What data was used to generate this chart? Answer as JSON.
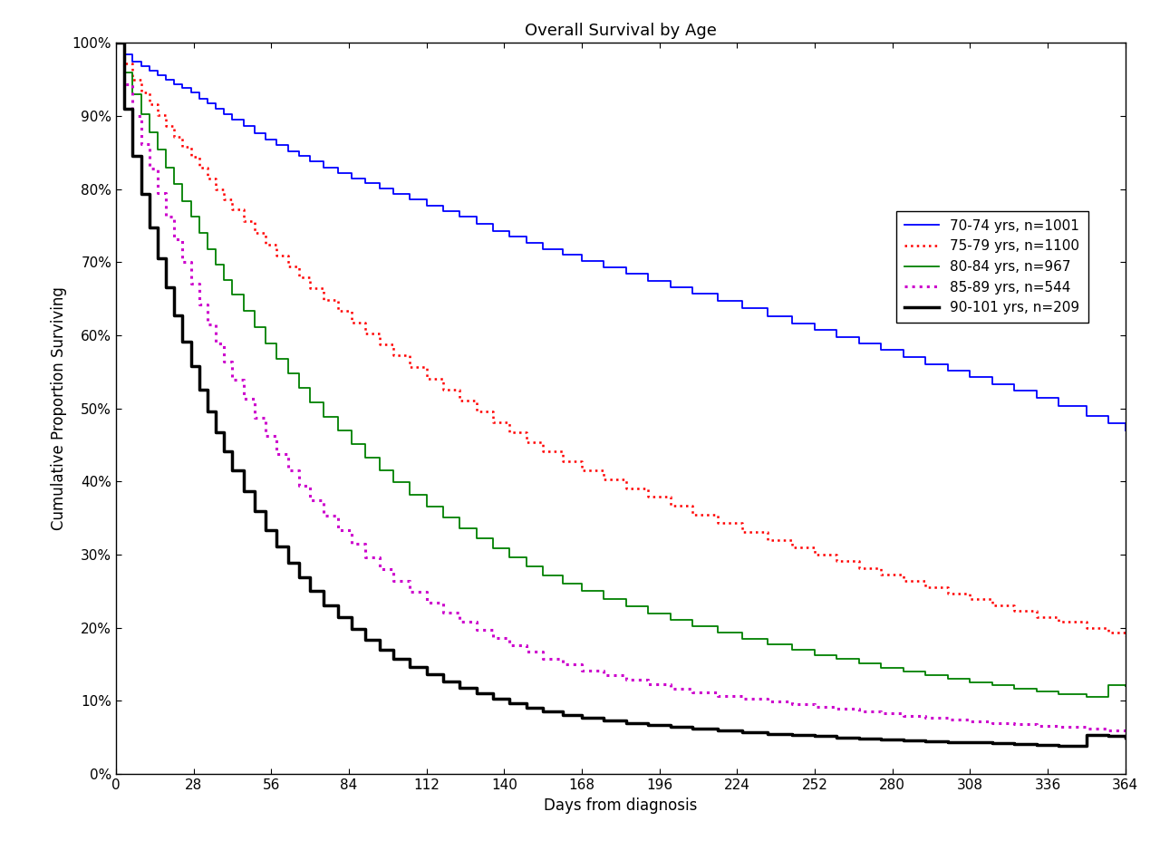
{
  "title": "Overall Survival by Age",
  "xlabel": "Days from diagnosis",
  "ylabel": "Cumulative Proportion Surviving",
  "xlim": [
    0,
    364
  ],
  "ylim": [
    0.0,
    1.0
  ],
  "xticks": [
    0,
    28,
    56,
    84,
    112,
    140,
    168,
    196,
    224,
    252,
    280,
    308,
    336,
    364
  ],
  "yticks": [
    0.0,
    0.1,
    0.2,
    0.3,
    0.4,
    0.5,
    0.6,
    0.7,
    0.8,
    0.9,
    1.0
  ],
  "ytick_labels": [
    "0%",
    "10%",
    "20%",
    "30%",
    "40%",
    "50%",
    "60%",
    "70%",
    "80%",
    "90%",
    "100%"
  ],
  "background_color": "#ffffff",
  "title_fontsize": 13,
  "axis_fontsize": 12,
  "tick_fontsize": 11,
  "legend_fontsize": 11,
  "curves": [
    {
      "label": "70-74 yrs, n=1001",
      "color": "#0000FF",
      "linestyle": "solid",
      "linewidth": 1.3,
      "marker": null,
      "x": [
        0,
        3,
        6,
        9,
        12,
        15,
        18,
        21,
        24,
        27,
        30,
        33,
        36,
        39,
        42,
        46,
        50,
        54,
        58,
        62,
        66,
        70,
        75,
        80,
        85,
        90,
        95,
        100,
        106,
        112,
        118,
        124,
        130,
        136,
        142,
        148,
        154,
        161,
        168,
        176,
        184,
        192,
        200,
        208,
        217,
        226,
        235,
        244,
        252,
        260,
        268,
        276,
        284,
        292,
        300,
        308,
        316,
        324,
        332,
        340,
        350,
        358,
        364
      ],
      "y": [
        1.0,
        0.985,
        0.975,
        0.968,
        0.962,
        0.956,
        0.95,
        0.944,
        0.938,
        0.932,
        0.924,
        0.917,
        0.91,
        0.903,
        0.895,
        0.886,
        0.877,
        0.868,
        0.86,
        0.852,
        0.845,
        0.838,
        0.83,
        0.822,
        0.815,
        0.808,
        0.801,
        0.794,
        0.786,
        0.778,
        0.77,
        0.762,
        0.752,
        0.743,
        0.735,
        0.726,
        0.718,
        0.71,
        0.702,
        0.693,
        0.684,
        0.675,
        0.666,
        0.657,
        0.647,
        0.637,
        0.626,
        0.616,
        0.607,
        0.598,
        0.589,
        0.58,
        0.57,
        0.561,
        0.552,
        0.543,
        0.533,
        0.524,
        0.514,
        0.504,
        0.49,
        0.48,
        0.47
      ]
    },
    {
      "label": "75-79 yrs, n=1100",
      "color": "#FF0000",
      "linestyle": "dotted",
      "linewidth": 1.8,
      "marker": null,
      "x": [
        0,
        3,
        6,
        9,
        12,
        15,
        18,
        21,
        24,
        27,
        30,
        33,
        36,
        39,
        42,
        46,
        50,
        54,
        58,
        62,
        66,
        70,
        75,
        80,
        85,
        90,
        95,
        100,
        106,
        112,
        118,
        124,
        130,
        136,
        142,
        148,
        154,
        161,
        168,
        176,
        184,
        192,
        200,
        208,
        217,
        226,
        235,
        244,
        252,
        260,
        268,
        276,
        284,
        292,
        300,
        308,
        316,
        324,
        332,
        340,
        350,
        358,
        364
      ],
      "y": [
        1.0,
        0.972,
        0.95,
        0.932,
        0.916,
        0.901,
        0.886,
        0.872,
        0.858,
        0.844,
        0.829,
        0.815,
        0.8,
        0.786,
        0.772,
        0.756,
        0.74,
        0.724,
        0.709,
        0.694,
        0.68,
        0.665,
        0.649,
        0.633,
        0.618,
        0.603,
        0.588,
        0.573,
        0.557,
        0.541,
        0.526,
        0.511,
        0.496,
        0.481,
        0.467,
        0.454,
        0.441,
        0.428,
        0.416,
        0.403,
        0.391,
        0.379,
        0.367,
        0.355,
        0.343,
        0.331,
        0.32,
        0.31,
        0.3,
        0.291,
        0.282,
        0.273,
        0.264,
        0.255,
        0.247,
        0.239,
        0.231,
        0.223,
        0.215,
        0.208,
        0.2,
        0.194,
        0.188
      ]
    },
    {
      "label": "80-84 yrs, n=967",
      "color": "#008000",
      "linestyle": "solid",
      "linewidth": 1.3,
      "marker": null,
      "x": [
        0,
        3,
        6,
        9,
        12,
        15,
        18,
        21,
        24,
        27,
        30,
        33,
        36,
        39,
        42,
        46,
        50,
        54,
        58,
        62,
        66,
        70,
        75,
        80,
        85,
        90,
        95,
        100,
        106,
        112,
        118,
        124,
        130,
        136,
        142,
        148,
        154,
        161,
        168,
        176,
        184,
        192,
        200,
        208,
        217,
        226,
        235,
        244,
        252,
        260,
        268,
        276,
        284,
        292,
        300,
        308,
        316,
        324,
        332,
        340,
        350,
        358,
        364
      ],
      "y": [
        1.0,
        0.96,
        0.93,
        0.903,
        0.878,
        0.854,
        0.83,
        0.807,
        0.784,
        0.762,
        0.74,
        0.718,
        0.697,
        0.676,
        0.656,
        0.633,
        0.611,
        0.589,
        0.568,
        0.548,
        0.528,
        0.509,
        0.489,
        0.47,
        0.451,
        0.433,
        0.416,
        0.399,
        0.382,
        0.366,
        0.351,
        0.336,
        0.322,
        0.309,
        0.296,
        0.284,
        0.272,
        0.261,
        0.25,
        0.24,
        0.23,
        0.22,
        0.211,
        0.202,
        0.193,
        0.185,
        0.177,
        0.17,
        0.163,
        0.157,
        0.151,
        0.145,
        0.14,
        0.135,
        0.13,
        0.125,
        0.121,
        0.117,
        0.113,
        0.109,
        0.105,
        0.122,
        0.12
      ]
    },
    {
      "label": "85-89 yrs, n=544",
      "color": "#CC00CC",
      "linestyle": "dotted",
      "linewidth": 2.2,
      "marker": null,
      "x": [
        0,
        3,
        6,
        9,
        12,
        15,
        18,
        21,
        24,
        27,
        30,
        33,
        36,
        39,
        42,
        46,
        50,
        54,
        58,
        62,
        66,
        70,
        75,
        80,
        85,
        90,
        95,
        100,
        106,
        112,
        118,
        124,
        130,
        136,
        142,
        148,
        154,
        161,
        168,
        176,
        184,
        192,
        200,
        208,
        217,
        226,
        235,
        244,
        252,
        260,
        268,
        276,
        284,
        292,
        300,
        308,
        316,
        324,
        332,
        340,
        350,
        358,
        364
      ],
      "y": [
        1.0,
        0.943,
        0.9,
        0.862,
        0.828,
        0.795,
        0.762,
        0.731,
        0.7,
        0.671,
        0.642,
        0.615,
        0.589,
        0.564,
        0.54,
        0.513,
        0.487,
        0.462,
        0.438,
        0.416,
        0.394,
        0.374,
        0.353,
        0.333,
        0.315,
        0.297,
        0.28,
        0.264,
        0.249,
        0.234,
        0.221,
        0.208,
        0.197,
        0.186,
        0.176,
        0.167,
        0.158,
        0.15,
        0.142,
        0.135,
        0.129,
        0.123,
        0.117,
        0.112,
        0.107,
        0.103,
        0.099,
        0.095,
        0.092,
        0.089,
        0.086,
        0.083,
        0.08,
        0.077,
        0.074,
        0.072,
        0.07,
        0.068,
        0.066,
        0.064,
        0.062,
        0.06,
        0.058
      ]
    },
    {
      "label": "90-101 yrs, n=209",
      "color": "#000000",
      "linestyle": "solid",
      "linewidth": 2.5,
      "marker": null,
      "x": [
        0,
        3,
        6,
        9,
        12,
        15,
        18,
        21,
        24,
        27,
        30,
        33,
        36,
        39,
        42,
        46,
        50,
        54,
        58,
        62,
        66,
        70,
        75,
        80,
        85,
        90,
        95,
        100,
        106,
        112,
        118,
        124,
        130,
        136,
        142,
        148,
        154,
        161,
        168,
        176,
        184,
        192,
        200,
        208,
        217,
        226,
        235,
        244,
        252,
        260,
        268,
        276,
        284,
        292,
        300,
        308,
        316,
        324,
        332,
        340,
        350,
        358,
        364
      ],
      "y": [
        1.0,
        0.91,
        0.845,
        0.793,
        0.748,
        0.706,
        0.666,
        0.628,
        0.592,
        0.558,
        0.526,
        0.496,
        0.468,
        0.441,
        0.416,
        0.387,
        0.36,
        0.334,
        0.311,
        0.289,
        0.269,
        0.25,
        0.231,
        0.214,
        0.198,
        0.183,
        0.17,
        0.158,
        0.146,
        0.136,
        0.127,
        0.118,
        0.11,
        0.103,
        0.097,
        0.091,
        0.086,
        0.081,
        0.077,
        0.073,
        0.07,
        0.067,
        0.064,
        0.062,
        0.06,
        0.057,
        0.055,
        0.053,
        0.052,
        0.05,
        0.048,
        0.047,
        0.046,
        0.045,
        0.044,
        0.043,
        0.042,
        0.041,
        0.04,
        0.038,
        0.053,
        0.052,
        0.05
      ]
    }
  ]
}
